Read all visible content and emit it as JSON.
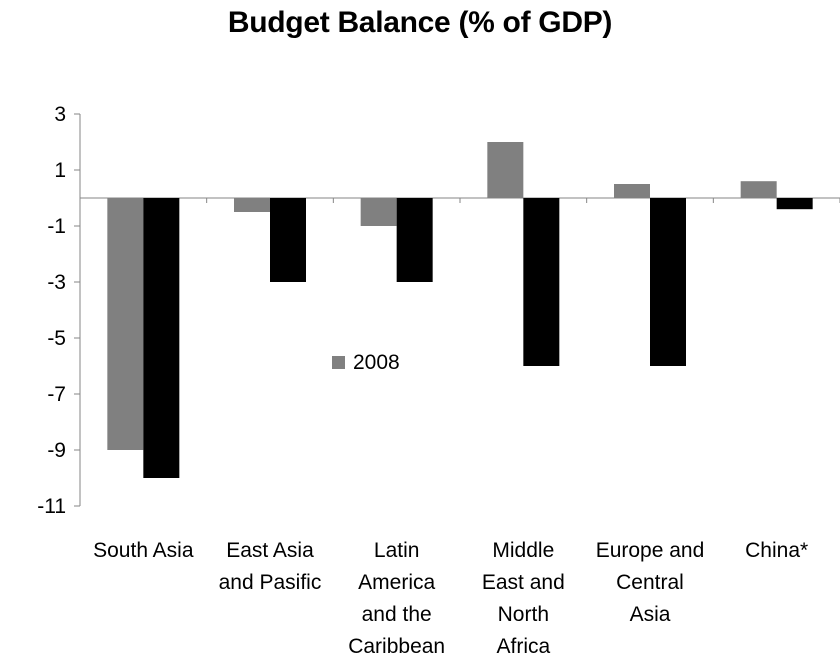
{
  "chart_data": {
    "type": "bar",
    "title": "Budget Balance (% of GDP)",
    "xlabel": "",
    "ylabel": "",
    "ylim": [
      -11,
      3
    ],
    "yticks": [
      3,
      1,
      -1,
      -3,
      -5,
      -7,
      -9,
      -11
    ],
    "grid": false,
    "categories": [
      [
        "South Asia"
      ],
      [
        "East Asia",
        "and Pasific"
      ],
      [
        "Latin",
        "America",
        "and the",
        "Caribbean"
      ],
      [
        "Middle",
        "East and",
        "North",
        "Africa"
      ],
      [
        "Europe and",
        "Central",
        "Asia"
      ],
      [
        "China*"
      ]
    ],
    "series": [
      {
        "name": "2008",
        "color": "#808080",
        "values": [
          -9,
          -0.5,
          -1,
          2,
          0.5,
          0.6
        ]
      },
      {
        "color": "#000000",
        "values": [
          -10,
          -3,
          -3,
          -6,
          -6,
          -0.4
        ]
      }
    ],
    "legend": {
      "position": "center",
      "entries": [
        "2008"
      ]
    }
  }
}
